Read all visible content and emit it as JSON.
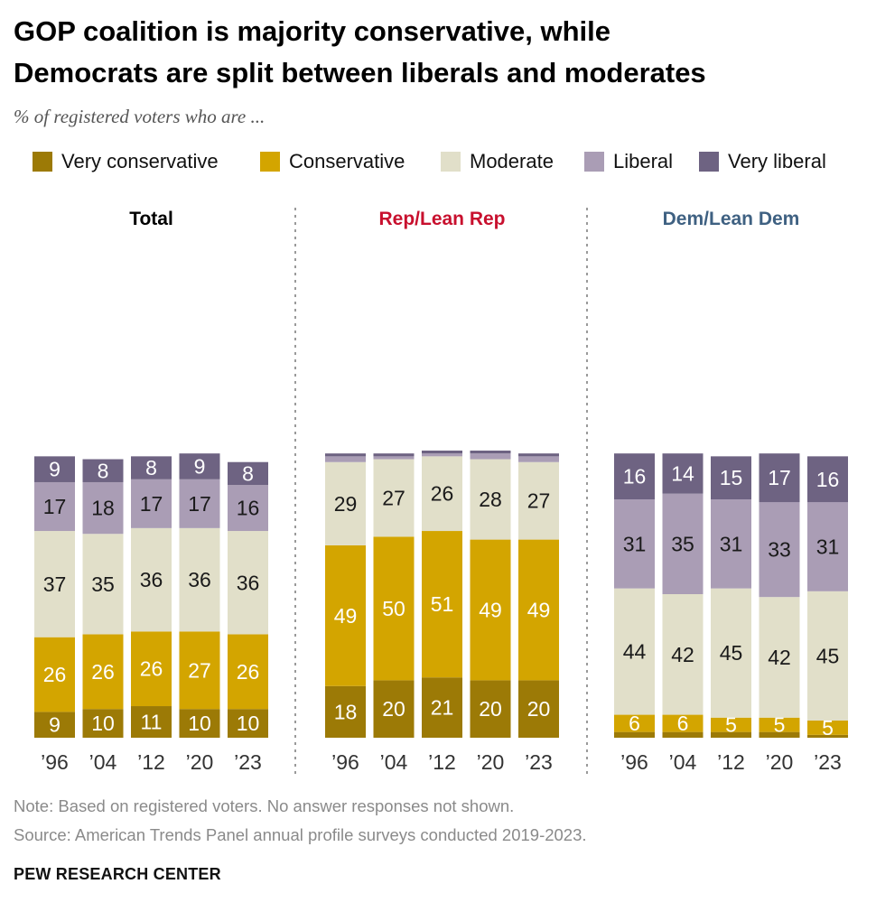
{
  "title_line1": "GOP coalition is majority conservative, while",
  "title_line2": "Democrats are split between liberals and moderates",
  "subtitle": "% of registered voters who are ...",
  "legend": [
    {
      "label": "Very conservative",
      "color": "#9c7a06"
    },
    {
      "label": "Conservative",
      "color": "#d3a500"
    },
    {
      "label": "Moderate",
      "color": "#e1dfc9"
    },
    {
      "label": "Liberal",
      "color": "#aa9db5"
    },
    {
      "label": "Very liberal",
      "color": "#6e6382"
    }
  ],
  "note": "Note: Based on registered voters. No answer responses not shown.",
  "source": "Source: American Trends Panel annual profile surveys conducted 2019-2023.",
  "brand": "PEW RESEARCH CENTER",
  "chart_data": [
    {
      "type": "bar",
      "stacked": true,
      "title": "Total",
      "title_color": "#000000",
      "categories": [
        "’96",
        "’04",
        "’12",
        "’20",
        "’23"
      ],
      "series": [
        {
          "name": "Very conservative",
          "values": [
            9,
            10,
            11,
            10,
            10
          ]
        },
        {
          "name": "Conservative",
          "values": [
            26,
            26,
            26,
            27,
            26
          ]
        },
        {
          "name": "Moderate",
          "values": [
            37,
            35,
            36,
            36,
            36
          ]
        },
        {
          "name": "Liberal",
          "values": [
            17,
            18,
            17,
            17,
            16
          ]
        },
        {
          "name": "Very liberal",
          "values": [
            9,
            8,
            8,
            9,
            8
          ]
        }
      ]
    },
    {
      "type": "bar",
      "stacked": true,
      "title": "Rep/Lean Rep",
      "title_color": "#c8102e",
      "categories": [
        "’96",
        "’04",
        "’12",
        "’20",
        "’23"
      ],
      "series": [
        {
          "name": "Very conservative",
          "values": [
            18,
            20,
            21,
            20,
            20
          ]
        },
        {
          "name": "Conservative",
          "values": [
            49,
            50,
            51,
            49,
            49
          ]
        },
        {
          "name": "Moderate",
          "values": [
            29,
            27,
            26,
            28,
            27
          ]
        },
        {
          "name": "Liberal",
          "values": [
            2,
            1,
            1,
            2,
            2
          ]
        },
        {
          "name": "Very liberal",
          "values": [
            1,
            1,
            1,
            1,
            1
          ]
        }
      ],
      "hidden_labels": [
        "Liberal",
        "Very liberal"
      ]
    },
    {
      "type": "bar",
      "stacked": true,
      "title": "Dem/Lean Dem",
      "title_color": "#3f6182",
      "categories": [
        "’96",
        "’04",
        "’12",
        "’20",
        "’23"
      ],
      "series": [
        {
          "name": "Very conservative",
          "values": [
            2,
            2,
            2,
            2,
            1
          ]
        },
        {
          "name": "Conservative",
          "values": [
            6,
            6,
            5,
            5,
            5
          ]
        },
        {
          "name": "Moderate",
          "values": [
            44,
            42,
            45,
            42,
            45
          ]
        },
        {
          "name": "Liberal",
          "values": [
            31,
            35,
            31,
            33,
            31
          ]
        },
        {
          "name": "Very liberal",
          "values": [
            16,
            14,
            15,
            17,
            16
          ]
        }
      ],
      "hidden_labels": [
        "Very conservative"
      ]
    }
  ]
}
